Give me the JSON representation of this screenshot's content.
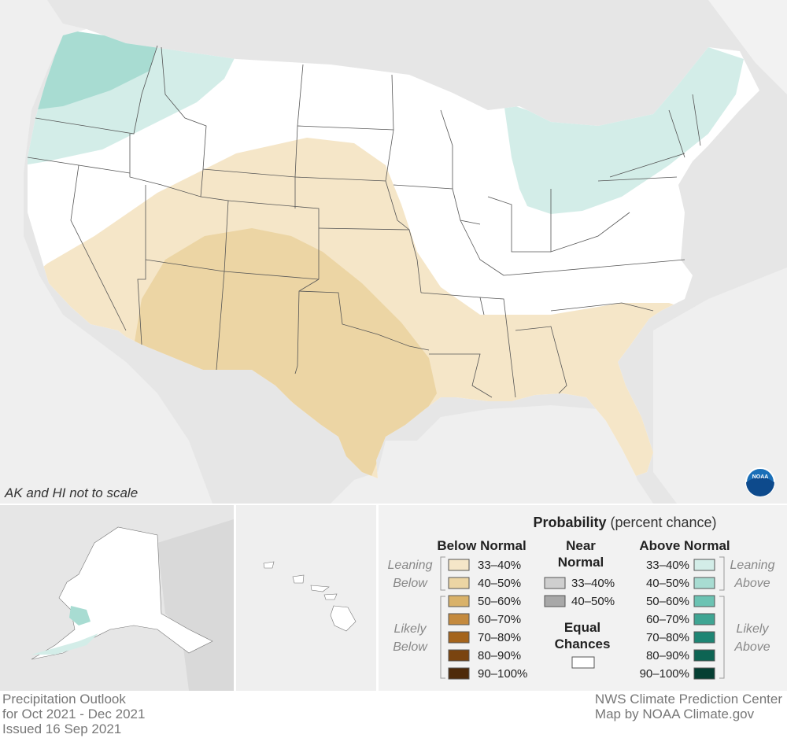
{
  "map": {
    "note": "AK and HI not to scale",
    "noaa_logo_text": "NOAA"
  },
  "legend": {
    "title_bold": "Probability",
    "title_rest": " (percent chance)",
    "below_normal": {
      "header": "Below Normal",
      "leaning_label": [
        "Leaning",
        "Below"
      ],
      "likely_label": [
        "Likely",
        "Below"
      ],
      "ranges": [
        "33–40%",
        "40–50%",
        "50–60%",
        "60–70%",
        "70–80%",
        "80–90%",
        "90–100%"
      ],
      "colors": [
        "#f5e6c8",
        "#ecd5a4",
        "#d9b26a",
        "#c48a3e",
        "#a4641c",
        "#7a4410",
        "#4e2a0a"
      ]
    },
    "near_normal": {
      "header": [
        "Near",
        "Normal"
      ],
      "ranges": [
        "33–40%",
        "40–50%"
      ],
      "colors": [
        "#cfcfcf",
        "#a8a8a8"
      ]
    },
    "equal_chances": {
      "header": [
        "Equal",
        "Chances"
      ],
      "color": "#ffffff"
    },
    "above_normal": {
      "header": "Above Normal",
      "leaning_label": [
        "Leaning",
        "Above"
      ],
      "likely_label": [
        "Likely",
        "Above"
      ],
      "ranges": [
        "33–40%",
        "40–50%",
        "50–60%",
        "60–70%",
        "70–80%",
        "80–90%",
        "90–100%"
      ],
      "colors": [
        "#d3ede8",
        "#a8dcd2",
        "#6cc3b3",
        "#3fa593",
        "#1e8574",
        "#0d6453",
        "#053f33"
      ]
    }
  },
  "footer_left": [
    "Precipitation Outlook",
    "for Oct 2021 - Dec 2021",
    "Issued 16 Sep 2021"
  ],
  "footer_right": [
    "NWS Climate Prediction Center",
    "Map by NOAA Climate.gov"
  ]
}
